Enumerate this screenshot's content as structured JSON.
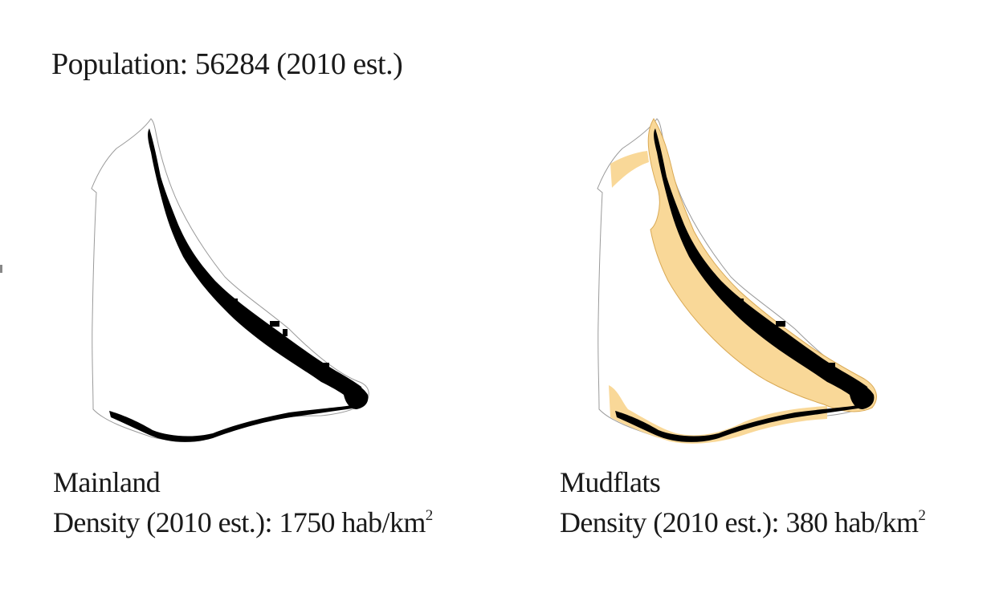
{
  "title": "Population: 56284 (2010 est.)",
  "maps": [
    {
      "name": "Mainland",
      "density_prefix": "Density (2010 est.): ",
      "density_value": "1750",
      "density_unit": " hab/km",
      "density_superscript": "2",
      "highlight_fill": null
    },
    {
      "name": "Mudflats",
      "density_prefix": "Density (2010 est.): ",
      "density_value": "380",
      "density_unit": " hab/km",
      "density_superscript": "2",
      "highlight_fill": "#f9d898"
    }
  ],
  "colors": {
    "outline": "#9a9a9a",
    "settlement": "#000000",
    "mudflat": "#f9d898",
    "mudflat_edge": "#d9a955"
  }
}
